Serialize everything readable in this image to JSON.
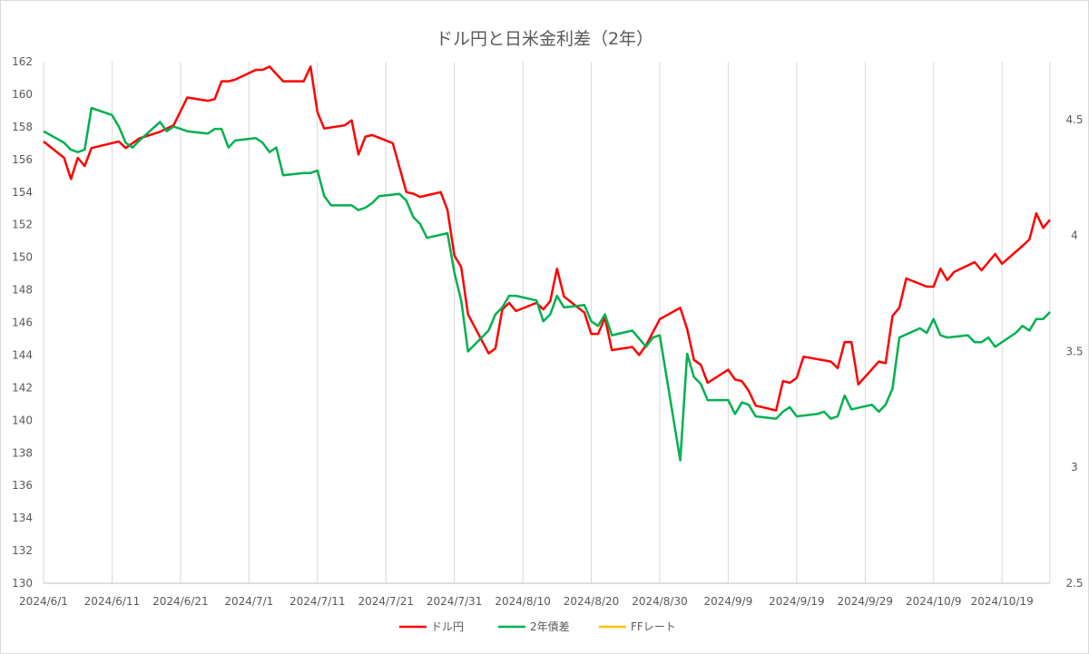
{
  "chart_data": {
    "type": "line",
    "title": "ドル円と日米金利差（2年）",
    "x_labels": [
      "2024/6/1",
      "2024/6/11",
      "2024/6/21",
      "2024/7/1",
      "2024/7/11",
      "2024/7/21",
      "2024/7/31",
      "2024/8/10",
      "2024/8/20",
      "2024/8/30",
      "2024/9/9",
      "2024/9/19",
      "2024/9/29",
      "2024/10/9",
      "2024/10/19"
    ],
    "x_range": [
      "2024-06-01",
      "2024-10-26"
    ],
    "y_left": {
      "min": 130,
      "max": 162,
      "step": 2,
      "ticks": [
        "130",
        "132",
        "134",
        "136",
        "138",
        "140",
        "142",
        "144",
        "146",
        "148",
        "150",
        "152",
        "154",
        "156",
        "158",
        "160",
        "162"
      ]
    },
    "y_right": {
      "min": 2.5,
      "max": 4.75,
      "ticks": [
        "2.5",
        "3",
        "3.5",
        "4",
        "4.5"
      ],
      "tick_values": [
        2.5,
        3,
        3.5,
        4,
        4.5
      ]
    },
    "grid": "vertical",
    "legend_position": "bottom",
    "series": [
      {
        "name": "ドル円",
        "axis": "left",
        "color": "#ff0000",
        "points": [
          [
            "2024-06-01",
            157.1
          ],
          [
            "2024-06-04",
            156.1
          ],
          [
            "2024-06-05",
            154.8
          ],
          [
            "2024-06-06",
            156.1
          ],
          [
            "2024-06-07",
            155.6
          ],
          [
            "2024-06-08",
            156.7
          ],
          [
            "2024-06-11",
            157.0
          ],
          [
            "2024-06-12",
            157.1
          ],
          [
            "2024-06-13",
            156.7
          ],
          [
            "2024-06-15",
            157.3
          ],
          [
            "2024-06-18",
            157.7
          ],
          [
            "2024-06-20",
            158.1
          ],
          [
            "2024-06-22",
            159.8
          ],
          [
            "2024-06-25",
            159.6
          ],
          [
            "2024-06-26",
            159.7
          ],
          [
            "2024-06-27",
            160.8
          ],
          [
            "2024-06-28",
            160.8
          ],
          [
            "2024-06-29",
            160.9
          ],
          [
            "2024-07-02",
            161.5
          ],
          [
            "2024-07-03",
            161.5
          ],
          [
            "2024-07-04",
            161.7
          ],
          [
            "2024-07-06",
            160.8
          ],
          [
            "2024-07-09",
            160.8
          ],
          [
            "2024-07-10",
            161.7
          ],
          [
            "2024-07-11",
            158.9
          ],
          [
            "2024-07-12",
            157.9
          ],
          [
            "2024-07-15",
            158.1
          ],
          [
            "2024-07-16",
            158.4
          ],
          [
            "2024-07-17",
            156.3
          ],
          [
            "2024-07-18",
            157.4
          ],
          [
            "2024-07-19",
            157.5
          ],
          [
            "2024-07-22",
            157.0
          ],
          [
            "2024-07-24",
            154.0
          ],
          [
            "2024-07-25",
            153.9
          ],
          [
            "2024-07-26",
            153.7
          ],
          [
            "2024-07-29",
            154.0
          ],
          [
            "2024-07-30",
            152.9
          ],
          [
            "2024-07-31",
            150.1
          ],
          [
            "2024-08-01",
            149.4
          ],
          [
            "2024-08-02",
            146.5
          ],
          [
            "2024-08-05",
            144.1
          ],
          [
            "2024-08-06",
            144.4
          ],
          [
            "2024-08-07",
            146.8
          ],
          [
            "2024-08-08",
            147.2
          ],
          [
            "2024-08-09",
            146.7
          ],
          [
            "2024-08-12",
            147.2
          ],
          [
            "2024-08-13",
            146.8
          ],
          [
            "2024-08-14",
            147.3
          ],
          [
            "2024-08-15",
            149.3
          ],
          [
            "2024-08-16",
            147.6
          ],
          [
            "2024-08-19",
            146.6
          ],
          [
            "2024-08-20",
            145.3
          ],
          [
            "2024-08-21",
            145.3
          ],
          [
            "2024-08-22",
            146.3
          ],
          [
            "2024-08-23",
            144.3
          ],
          [
            "2024-08-26",
            144.5
          ],
          [
            "2024-08-27",
            144.0
          ],
          [
            "2024-08-28",
            144.6
          ],
          [
            "2024-08-30",
            146.2
          ],
          [
            "2024-09-02",
            146.9
          ],
          [
            "2024-09-03",
            145.6
          ],
          [
            "2024-09-04",
            143.7
          ],
          [
            "2024-09-05",
            143.4
          ],
          [
            "2024-09-06",
            142.3
          ],
          [
            "2024-09-09",
            143.1
          ],
          [
            "2024-09-10",
            142.5
          ],
          [
            "2024-09-11",
            142.4
          ],
          [
            "2024-09-12",
            141.8
          ],
          [
            "2024-09-13",
            140.9
          ],
          [
            "2024-09-16",
            140.6
          ],
          [
            "2024-09-17",
            142.4
          ],
          [
            "2024-09-18",
            142.3
          ],
          [
            "2024-09-19",
            142.6
          ],
          [
            "2024-09-20",
            143.9
          ],
          [
            "2024-09-24",
            143.6
          ],
          [
            "2024-09-25",
            143.2
          ],
          [
            "2024-09-26",
            144.8
          ],
          [
            "2024-09-27",
            144.8
          ],
          [
            "2024-09-28",
            142.2
          ],
          [
            "2024-10-01",
            143.6
          ],
          [
            "2024-10-02",
            143.5
          ],
          [
            "2024-10-03",
            146.4
          ],
          [
            "2024-10-04",
            146.9
          ],
          [
            "2024-10-05",
            148.7
          ],
          [
            "2024-10-08",
            148.2
          ],
          [
            "2024-10-09",
            148.2
          ],
          [
            "2024-10-10",
            149.3
          ],
          [
            "2024-10-11",
            148.6
          ],
          [
            "2024-10-12",
            149.1
          ],
          [
            "2024-10-15",
            149.7
          ],
          [
            "2024-10-16",
            149.2
          ],
          [
            "2024-10-18",
            150.2
          ],
          [
            "2024-10-19",
            149.6
          ],
          [
            "2024-10-22",
            150.7
          ],
          [
            "2024-10-23",
            151.1
          ],
          [
            "2024-10-24",
            152.7
          ],
          [
            "2024-10-25",
            151.8
          ],
          [
            "2024-10-26",
            152.3
          ]
        ]
      },
      {
        "name": "2年債差",
        "axis": "right",
        "color": "#00b050",
        "points": [
          [
            "2024-06-01",
            4.45
          ],
          [
            "2024-06-04",
            4.4
          ],
          [
            "2024-06-05",
            4.37
          ],
          [
            "2024-06-06",
            4.36
          ],
          [
            "2024-06-07",
            4.37
          ],
          [
            "2024-06-08",
            4.55
          ],
          [
            "2024-06-11",
            4.52
          ],
          [
            "2024-06-12",
            4.47
          ],
          [
            "2024-06-13",
            4.4
          ],
          [
            "2024-06-14",
            4.38
          ],
          [
            "2024-06-15",
            4.41
          ],
          [
            "2024-06-18",
            4.49
          ],
          [
            "2024-06-19",
            4.45
          ],
          [
            "2024-06-20",
            4.47
          ],
          [
            "2024-06-21",
            4.46
          ],
          [
            "2024-06-22",
            4.45
          ],
          [
            "2024-06-25",
            4.44
          ],
          [
            "2024-06-26",
            4.46
          ],
          [
            "2024-06-27",
            4.46
          ],
          [
            "2024-06-28",
            4.38
          ],
          [
            "2024-06-29",
            4.41
          ],
          [
            "2024-07-02",
            4.42
          ],
          [
            "2024-07-03",
            4.4
          ],
          [
            "2024-07-04",
            4.36
          ],
          [
            "2024-07-05",
            4.38
          ],
          [
            "2024-07-06",
            4.26
          ],
          [
            "2024-07-09",
            4.27
          ],
          [
            "2024-07-10",
            4.27
          ],
          [
            "2024-07-11",
            4.28
          ],
          [
            "2024-07-12",
            4.17
          ],
          [
            "2024-07-13",
            4.13
          ],
          [
            "2024-07-16",
            4.13
          ],
          [
            "2024-07-17",
            4.11
          ],
          [
            "2024-07-18",
            4.12
          ],
          [
            "2024-07-19",
            4.14
          ],
          [
            "2024-07-20",
            4.17
          ],
          [
            "2024-07-23",
            4.18
          ],
          [
            "2024-07-24",
            4.15
          ],
          [
            "2024-07-25",
            4.08
          ],
          [
            "2024-07-26",
            4.05
          ],
          [
            "2024-07-27",
            3.99
          ],
          [
            "2024-07-30",
            4.01
          ],
          [
            "2024-07-31",
            3.84
          ],
          [
            "2024-08-01",
            3.72
          ],
          [
            "2024-08-02",
            3.5
          ],
          [
            "2024-08-05",
            3.59
          ],
          [
            "2024-08-06",
            3.66
          ],
          [
            "2024-08-07",
            3.69
          ],
          [
            "2024-08-08",
            3.74
          ],
          [
            "2024-08-09",
            3.74
          ],
          [
            "2024-08-12",
            3.72
          ],
          [
            "2024-08-13",
            3.63
          ],
          [
            "2024-08-14",
            3.66
          ],
          [
            "2024-08-15",
            3.74
          ],
          [
            "2024-08-16",
            3.69
          ],
          [
            "2024-08-19",
            3.7
          ],
          [
            "2024-08-20",
            3.63
          ],
          [
            "2024-08-21",
            3.61
          ],
          [
            "2024-08-22",
            3.66
          ],
          [
            "2024-08-23",
            3.57
          ],
          [
            "2024-08-26",
            3.59
          ],
          [
            "2024-08-28",
            3.52
          ],
          [
            "2024-08-29",
            3.56
          ],
          [
            "2024-08-30",
            3.57
          ],
          [
            "2024-09-02",
            3.03
          ],
          [
            "2024-09-03",
            3.49
          ],
          [
            "2024-09-04",
            3.39
          ],
          [
            "2024-09-05",
            3.36
          ],
          [
            "2024-09-06",
            3.29
          ],
          [
            "2024-09-09",
            3.29
          ],
          [
            "2024-09-10",
            3.23
          ],
          [
            "2024-09-11",
            3.28
          ],
          [
            "2024-09-12",
            3.27
          ],
          [
            "2024-09-13",
            3.22
          ],
          [
            "2024-09-16",
            3.21
          ],
          [
            "2024-09-17",
            3.24
          ],
          [
            "2024-09-18",
            3.26
          ],
          [
            "2024-09-19",
            3.22
          ],
          [
            "2024-09-22",
            3.23
          ],
          [
            "2024-09-23",
            3.24
          ],
          [
            "2024-09-24",
            3.21
          ],
          [
            "2024-09-25",
            3.22
          ],
          [
            "2024-09-26",
            3.31
          ],
          [
            "2024-09-27",
            3.25
          ],
          [
            "2024-09-30",
            3.27
          ],
          [
            "2024-10-01",
            3.24
          ],
          [
            "2024-10-02",
            3.27
          ],
          [
            "2024-10-03",
            3.34
          ],
          [
            "2024-10-04",
            3.56
          ],
          [
            "2024-10-07",
            3.6
          ],
          [
            "2024-10-08",
            3.58
          ],
          [
            "2024-10-09",
            3.64
          ],
          [
            "2024-10-10",
            3.57
          ],
          [
            "2024-10-11",
            3.56
          ],
          [
            "2024-10-14",
            3.57
          ],
          [
            "2024-10-15",
            3.54
          ],
          [
            "2024-10-16",
            3.54
          ],
          [
            "2024-10-17",
            3.56
          ],
          [
            "2024-10-18",
            3.52
          ],
          [
            "2024-10-21",
            3.58
          ],
          [
            "2024-10-22",
            3.61
          ],
          [
            "2024-10-23",
            3.59
          ],
          [
            "2024-10-24",
            3.64
          ],
          [
            "2024-10-25",
            3.64
          ],
          [
            "2024-10-26",
            3.67
          ]
        ]
      },
      {
        "name": "FFレート",
        "axis": "right",
        "color": "#ffc000",
        "points": []
      }
    ]
  }
}
